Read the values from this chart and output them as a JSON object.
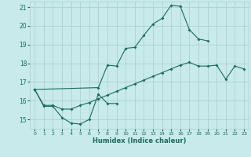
{
  "xlabel": "Humidex (Indice chaleur)",
  "bg_color": "#c8eaea",
  "grid_color": "#a8cccc",
  "line_color": "#1a6b5a",
  "xlim": [
    -0.5,
    23.5
  ],
  "ylim": [
    14.5,
    21.3
  ],
  "yticks": [
    15,
    16,
    17,
    18,
    19,
    20,
    21
  ],
  "xticks": [
    0,
    1,
    2,
    3,
    4,
    5,
    6,
    7,
    8,
    9,
    10,
    11,
    12,
    13,
    14,
    15,
    16,
    17,
    18,
    19,
    20,
    21,
    22,
    23
  ],
  "line1_x": [
    0,
    1,
    2,
    3,
    4,
    5,
    6,
    7,
    8,
    9
  ],
  "line1_y": [
    16.6,
    15.7,
    15.7,
    15.1,
    14.8,
    14.75,
    15.0,
    16.35,
    15.85,
    15.85
  ],
  "line2_x": [
    0,
    7,
    8,
    9,
    10,
    11,
    12,
    13,
    14,
    15,
    16,
    17,
    18,
    19
  ],
  "line2_y": [
    16.6,
    16.7,
    17.9,
    17.85,
    18.8,
    18.85,
    19.5,
    20.1,
    20.4,
    21.1,
    21.05,
    19.8,
    19.3,
    19.2
  ],
  "line3_x": [
    0,
    1,
    2,
    3,
    4,
    5,
    6,
    7,
    8,
    9,
    10,
    11,
    12,
    13,
    14,
    15,
    16,
    17,
    18,
    19,
    20,
    21,
    22,
    23
  ],
  "line3_y": [
    16.6,
    15.75,
    15.75,
    15.55,
    15.55,
    15.75,
    15.9,
    16.1,
    16.3,
    16.5,
    16.7,
    16.9,
    17.1,
    17.3,
    17.5,
    17.7,
    17.9,
    18.05,
    17.85,
    17.85,
    17.9,
    17.15,
    17.85,
    17.7
  ]
}
